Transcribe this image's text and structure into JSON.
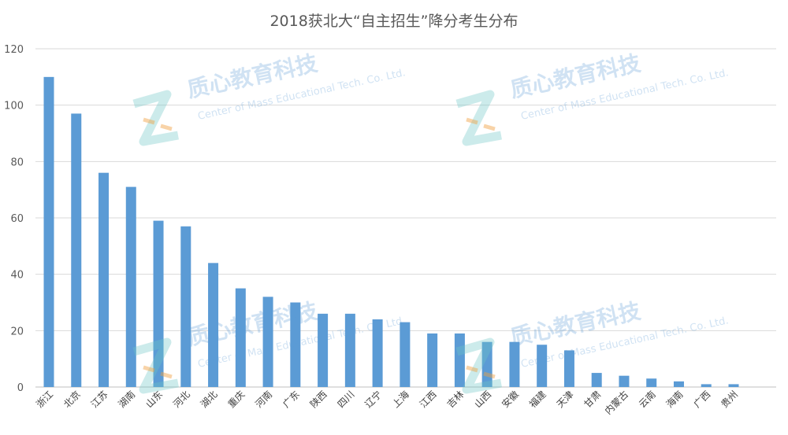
{
  "watermark": {
    "name_cn": "质心教育科技",
    "name_en": "Center of Mass Educational Tech. Co. Ltd."
  },
  "chart_data": {
    "type": "bar",
    "title": "2018获北大“自主招生”降分考生分布",
    "xlabel": "",
    "ylabel": "",
    "ylim": [
      0,
      120
    ],
    "yticks": [
      "0",
      "20",
      "40",
      "60",
      "80",
      "100",
      "120"
    ],
    "grid": true,
    "bar_color": "#5b9bd5",
    "categories": [
      "浙江",
      "北京",
      "江苏",
      "湖南",
      "山东",
      "河北",
      "湖北",
      "重庆",
      "河南",
      "广东",
      "陕西",
      "四川",
      "辽宁",
      "上海",
      "江西",
      "吉林",
      "山西",
      "安徽",
      "福建",
      "天津",
      "甘肃",
      "内蒙古",
      "云南",
      "海南",
      "广西",
      "贵州"
    ],
    "values": [
      110,
      97,
      76,
      71,
      59,
      57,
      44,
      35,
      32,
      30,
      26,
      26,
      24,
      23,
      19,
      19,
      16,
      16,
      15,
      13,
      5,
      4,
      3,
      2,
      1,
      1
    ]
  }
}
